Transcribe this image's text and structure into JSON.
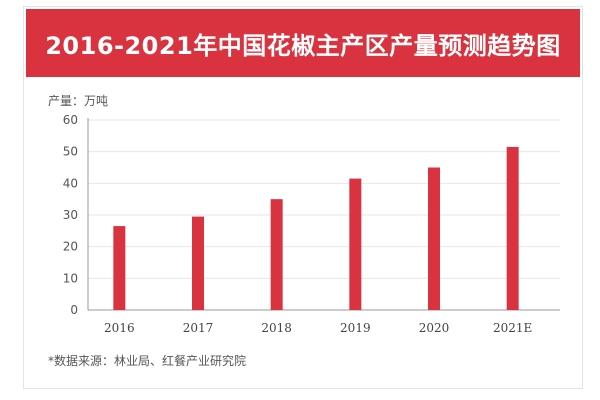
{
  "title": "2016-2021年中国花椒主产区产量预测趋势图",
  "unit_label": "产量：万吨",
  "source_note": "*数据来源：林业局、红餐产业研究院",
  "colors": {
    "header": "#d8333f",
    "bar": "#d8333f",
    "grid": "#e6e6e6",
    "axis": "#999999"
  },
  "chart_data": {
    "type": "bar",
    "title": "2016-2021年中国花椒主产区产量预测趋势图",
    "xlabel": "",
    "ylabel": "产量：万吨",
    "categories": [
      "2016",
      "2017",
      "2018",
      "2019",
      "2020",
      "2021E"
    ],
    "values": [
      26.5,
      29.5,
      35,
      41.5,
      45,
      51.5
    ],
    "yticks": [
      "0",
      "10",
      "20",
      "30",
      "40",
      "50",
      "60"
    ],
    "ylim": [
      0,
      60
    ],
    "grid": true,
    "legend": "none"
  }
}
